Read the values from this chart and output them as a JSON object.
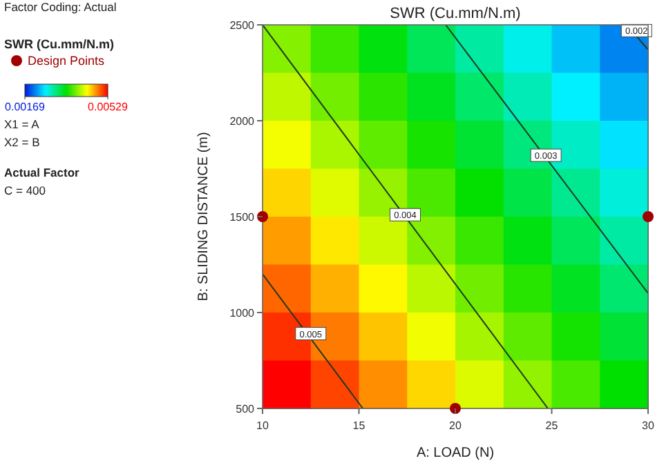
{
  "chart_data": {
    "type": "heatmap",
    "title": "SWR (Cu.mm/N.m)",
    "xlabel": "A: LOAD (N)",
    "ylabel": "B: SLIDING DISTANCE (m)",
    "legend_title": "SWR (Cu.mm/N.m)",
    "legend": "left",
    "xlim": [
      10,
      30
    ],
    "ylim": [
      500,
      2500
    ],
    "xticks": [
      10,
      15,
      20,
      25,
      30
    ],
    "yticks": [
      500,
      1000,
      1500,
      2000,
      2500
    ],
    "clim": [
      0.00169,
      0.00529
    ],
    "cticks": [
      {
        "value": 0.00169,
        "label": "0.00169"
      },
      {
        "value": 0.00529,
        "label": "0.00529"
      }
    ],
    "cells": [
      [
        0.00396,
        0.0037,
        0.00344,
        0.00318,
        0.00292,
        0.00266,
        0.0024,
        0.00214
      ],
      [
        0.00416,
        0.0039,
        0.00364,
        0.00338,
        0.00312,
        0.00285,
        0.00259,
        0.00233
      ],
      [
        0.00435,
        0.00409,
        0.00383,
        0.00357,
        0.00331,
        0.00305,
        0.00279,
        0.00253
      ],
      [
        0.00454,
        0.00428,
        0.00402,
        0.00376,
        0.0035,
        0.00324,
        0.00298,
        0.00272
      ],
      [
        0.00474,
        0.00447,
        0.00421,
        0.00395,
        0.00369,
        0.00343,
        0.00317,
        0.00291
      ],
      [
        0.00493,
        0.00467,
        0.00441,
        0.00415,
        0.00389,
        0.00363,
        0.00337,
        0.0031
      ],
      [
        0.00512,
        0.00486,
        0.0046,
        0.00434,
        0.00408,
        0.00382,
        0.00356,
        0.0033
      ],
      [
        0.00529,
        0.00505,
        0.00479,
        0.00453,
        0.00427,
        0.00401,
        0.00375,
        0.00349
      ]
    ],
    "series": [
      {
        "type": "line",
        "color": "#1f3a1f",
        "x": [
          10,
          15.2
        ],
        "values": [
          1200,
          500
        ]
      },
      {
        "type": "line",
        "color": "#1f3a1f",
        "x": [
          10,
          24.8
        ],
        "values": [
          2500,
          500
        ]
      },
      {
        "type": "line",
        "color": "#1f3a1f",
        "x": [
          19.5,
          30
        ],
        "values": [
          2500,
          1100
        ]
      },
      {
        "type": "line",
        "color": "#1f3a1f",
        "x": [
          28.9,
          30
        ],
        "values": [
          2500,
          2370
        ]
      },
      {
        "type": "scatter",
        "name": "Design Points",
        "color": "#a00000",
        "marker": "circle",
        "x": [
          10,
          30,
          20
        ],
        "values": [
          1500,
          1500,
          500
        ]
      }
    ],
    "annotations": [
      {
        "text": "0.005",
        "x": 12.5,
        "y": 890
      },
      {
        "text": "0.004",
        "x": 17.4,
        "y": 1510
      },
      {
        "text": "0.003",
        "x": 24.7,
        "y": 1820
      },
      {
        "text": "0.002",
        "x": 29.4,
        "y": 2470
      },
      "Factor Coding: Actual",
      "X1 = A",
      "X2 = B",
      "Actual Factor",
      "C = 400"
    ]
  }
}
